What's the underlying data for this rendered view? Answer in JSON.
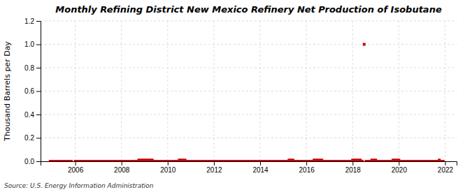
{
  "chart_data": {
    "type": "scatter",
    "title": "Monthly Refining District New Mexico Refinery Net Production of Isobutane",
    "y_label": "Thousand Barrels per Day",
    "annotations": [
      "Source: U.S. Energy Information Administration"
    ],
    "color": "#cc0000",
    "marker": "square",
    "grid": true,
    "xlim": [
      2004.5,
      2022.5
    ],
    "xticks": [
      2006,
      2008,
      2010,
      2012,
      2014,
      2016,
      2018,
      2020,
      2022
    ],
    "ylim": [
      0,
      1.2
    ],
    "yticks": [
      {
        "value": 0,
        "label": "0.0"
      },
      0.2,
      0.4,
      0.6,
      0.8,
      {
        "value": 1,
        "label": "1.0"
      },
      1.2
    ],
    "x": [
      2004.917,
      2005.0,
      2005.083,
      2005.167,
      2005.25,
      2005.333,
      2005.417,
      2005.5,
      2005.583,
      2005.667,
      2005.75,
      2005.833,
      2006.0,
      2006.083,
      2006.167,
      2006.25,
      2006.333,
      2006.417,
      2006.5,
      2006.583,
      2006.667,
      2006.75,
      2006.833,
      2006.917,
      2007.0,
      2007.083,
      2007.167,
      2007.25,
      2007.333,
      2007.417,
      2007.5,
      2007.583,
      2007.667,
      2007.75,
      2007.833,
      2007.917,
      2008.0,
      2008.083,
      2008.167,
      2008.25,
      2008.333,
      2008.417,
      2008.5,
      2008.583,
      2008.667,
      2008.75,
      2008.833,
      2008.917,
      2009.0,
      2009.083,
      2009.167,
      2009.25,
      2009.333,
      2009.417,
      2009.5,
      2009.583,
      2009.667,
      2009.75,
      2009.833,
      2009.917,
      2010.0,
      2010.083,
      2010.167,
      2010.25,
      2010.333,
      2010.417,
      2010.5,
      2010.583,
      2010.667,
      2010.75,
      2010.833,
      2010.917,
      2011.0,
      2011.083,
      2011.167,
      2011.25,
      2011.333,
      2011.417,
      2011.5,
      2011.583,
      2011.667,
      2011.75,
      2011.833,
      2011.917,
      2012.0,
      2012.083,
      2012.167,
      2012.25,
      2012.333,
      2012.417,
      2012.5,
      2012.583,
      2012.667,
      2012.75,
      2012.833,
      2012.917,
      2013.0,
      2013.083,
      2013.167,
      2013.25,
      2013.333,
      2013.417,
      2013.5,
      2013.583,
      2013.667,
      2013.75,
      2013.833,
      2013.917,
      2014.0,
      2014.083,
      2014.167,
      2014.25,
      2014.333,
      2014.417,
      2014.5,
      2014.583,
      2014.667,
      2014.75,
      2014.833,
      2014.917,
      2015.0,
      2015.083,
      2015.167,
      2015.25,
      2015.333,
      2015.417,
      2015.5,
      2015.583,
      2015.667,
      2015.75,
      2015.833,
      2015.917,
      2016.0,
      2016.083,
      2016.167,
      2016.25,
      2016.333,
      2016.417,
      2016.5,
      2016.583,
      2016.667,
      2016.75,
      2016.833,
      2016.917,
      2017.0,
      2017.083,
      2017.167,
      2017.25,
      2017.333,
      2017.417,
      2017.5,
      2017.583,
      2017.667,
      2017.75,
      2017.833,
      2017.917,
      2018.0,
      2018.083,
      2018.167,
      2018.25,
      2018.333,
      2018.417,
      2018.5,
      2018.583,
      2018.667,
      2018.75,
      2018.833,
      2018.917,
      2019.0,
      2019.083,
      2019.167,
      2019.25,
      2019.333,
      2019.417,
      2019.5,
      2019.583,
      2019.667,
      2019.75,
      2019.833,
      2019.917,
      2020.0,
      2020.083,
      2020.167,
      2020.25,
      2020.333,
      2020.417,
      2020.5,
      2020.583,
      2020.667,
      2020.75,
      2020.833,
      2020.917,
      2021.0,
      2021.083,
      2021.167,
      2021.25,
      2021.333,
      2021.417,
      2021.5,
      2021.583,
      2021.667,
      2021.75,
      2021.833,
      2021.917
    ],
    "values": [
      0.0,
      0.0,
      0.0,
      0.0,
      0.0,
      0.0,
      0.0,
      0.0,
      0.0,
      0.0,
      0.0,
      0.0,
      0.0,
      0.0,
      0.0,
      0.0,
      0.0,
      0.0,
      0.0,
      0.0,
      0.0,
      0.0,
      0.0,
      0.0,
      0.0,
      0.0,
      0.0,
      0.0,
      0.0,
      0.0,
      0.0,
      0.0,
      0.0,
      0.0,
      0.0,
      0.0,
      0.0,
      0.0,
      0.0,
      0.0,
      0.0,
      0.0,
      0.0,
      0.0,
      0.0,
      0.01,
      0.01,
      0.01,
      0.01,
      0.01,
      0.01,
      0.01,
      0.01,
      0.0,
      0.0,
      0.0,
      0.0,
      0.0,
      0.0,
      0.0,
      0.0,
      0.0,
      0.0,
      0.0,
      0.0,
      0.0,
      0.01,
      0.01,
      0.01,
      0.01,
      0.0,
      0.0,
      0.0,
      0.0,
      0.0,
      0.0,
      0.0,
      0.0,
      0.0,
      0.0,
      0.0,
      0.0,
      0.0,
      0.0,
      0.0,
      0.0,
      0.0,
      0.0,
      0.0,
      0.0,
      0.0,
      0.0,
      0.0,
      0.0,
      0.0,
      0.0,
      0.0,
      0.0,
      0.0,
      0.0,
      0.0,
      0.0,
      0.0,
      0.0,
      0.0,
      0.0,
      0.0,
      0.0,
      0.0,
      0.0,
      0.0,
      0.0,
      0.0,
      0.0,
      0.0,
      0.0,
      0.0,
      0.0,
      0.0,
      0.0,
      0.0,
      0.0,
      0.0,
      0.01,
      0.01,
      0.01,
      0.0,
      0.0,
      0.0,
      0.0,
      0.0,
      0.0,
      0.0,
      0.0,
      0.0,
      0.0,
      0.01,
      0.01,
      0.01,
      0.01,
      0.01,
      0.0,
      0.0,
      0.0,
      0.0,
      0.0,
      0.0,
      0.0,
      0.0,
      0.0,
      0.0,
      0.0,
      0.0,
      0.0,
      0.0,
      0.0,
      0.01,
      0.01,
      0.01,
      0.01,
      0.01,
      0.0,
      1.0,
      0.0,
      0.0,
      0.0,
      0.01,
      0.01,
      0.01,
      0.0,
      0.0,
      0.0,
      0.0,
      0.0,
      0.0,
      0.0,
      0.0,
      0.01,
      0.01,
      0.01,
      0.01,
      0.0,
      0.0,
      0.0,
      0.0,
      0.0,
      0.0,
      0.0,
      0.0,
      0.0,
      0.0,
      0.0,
      0.0,
      0.0,
      0.0,
      0.0,
      0.0,
      0.0,
      0.0,
      0.0,
      0.0,
      0.01,
      0.0,
      0.0
    ]
  }
}
